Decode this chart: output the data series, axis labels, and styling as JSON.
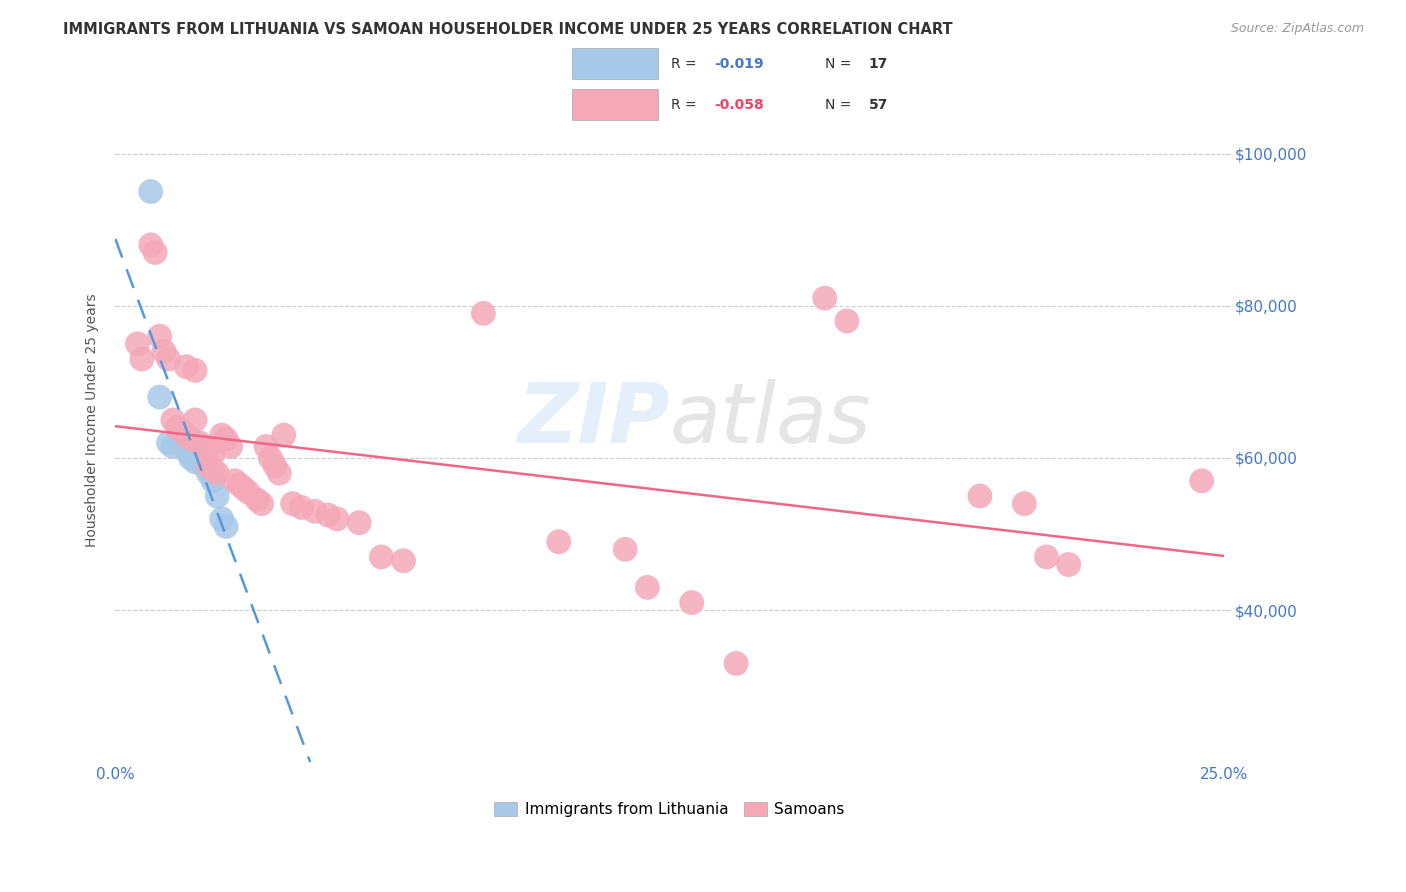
{
  "title": "IMMIGRANTS FROM LITHUANIA VS SAMOAN HOUSEHOLDER INCOME UNDER 25 YEARS CORRELATION CHART",
  "source": "Source: ZipAtlas.com",
  "ylabel": "Householder Income Under 25 years",
  "xmin": 0.0,
  "xmax": 0.25,
  "ymin": 20000,
  "ymax": 110000,
  "yticks": [
    40000,
    60000,
    80000,
    100000
  ],
  "ytick_labels": [
    "$40,000",
    "$60,000",
    "$80,000",
    "$100,000"
  ],
  "watermark": "ZIPatlas",
  "legend_r_blue": "-0.019",
  "legend_n_blue": "17",
  "legend_r_pink": "-0.058",
  "legend_n_pink": "57",
  "blue_color": "#a8c8e8",
  "pink_color": "#f4a8b8",
  "blue_line_color": "#5599dd",
  "pink_line_color": "#ee6688",
  "background_color": "#ffffff",
  "grid_color": "#cccccc",
  "legend_entries": [
    "Immigrants from Lithuania",
    "Samoans"
  ],
  "blue_x": [
    0.008,
    0.01,
    0.012,
    0.013,
    0.015,
    0.016,
    0.017,
    0.017,
    0.018,
    0.018,
    0.019,
    0.02,
    0.021,
    0.022,
    0.023,
    0.024,
    0.025
  ],
  "blue_y": [
    95000,
    68000,
    62000,
    61500,
    62500,
    61000,
    60500,
    60000,
    59500,
    61500,
    60000,
    59000,
    58000,
    57000,
    55000,
    52000,
    51000
  ],
  "pink_x": [
    0.005,
    0.006,
    0.008,
    0.009,
    0.01,
    0.011,
    0.012,
    0.013,
    0.014,
    0.015,
    0.016,
    0.016,
    0.017,
    0.018,
    0.018,
    0.019,
    0.02,
    0.021,
    0.021,
    0.022,
    0.022,
    0.023,
    0.024,
    0.025,
    0.026,
    0.027,
    0.028,
    0.029,
    0.03,
    0.032,
    0.033,
    0.034,
    0.035,
    0.036,
    0.037,
    0.038,
    0.04,
    0.042,
    0.045,
    0.048,
    0.05,
    0.055,
    0.06,
    0.065,
    0.083,
    0.1,
    0.115,
    0.12,
    0.13,
    0.14,
    0.16,
    0.165,
    0.195,
    0.205,
    0.21,
    0.215,
    0.245
  ],
  "pink_y": [
    75000,
    73000,
    88000,
    87000,
    76000,
    74000,
    73000,
    65000,
    64000,
    63500,
    72000,
    63000,
    62500,
    65000,
    71500,
    62000,
    61500,
    61000,
    59000,
    60500,
    58500,
    58000,
    63000,
    62500,
    61500,
    57000,
    56500,
    56000,
    55500,
    54500,
    54000,
    61500,
    60000,
    59000,
    58000,
    63000,
    54000,
    53500,
    53000,
    52500,
    52000,
    51500,
    47000,
    46500,
    79000,
    49000,
    48000,
    43000,
    41000,
    33000,
    81000,
    78000,
    55000,
    54000,
    47000,
    46000,
    57000
  ]
}
